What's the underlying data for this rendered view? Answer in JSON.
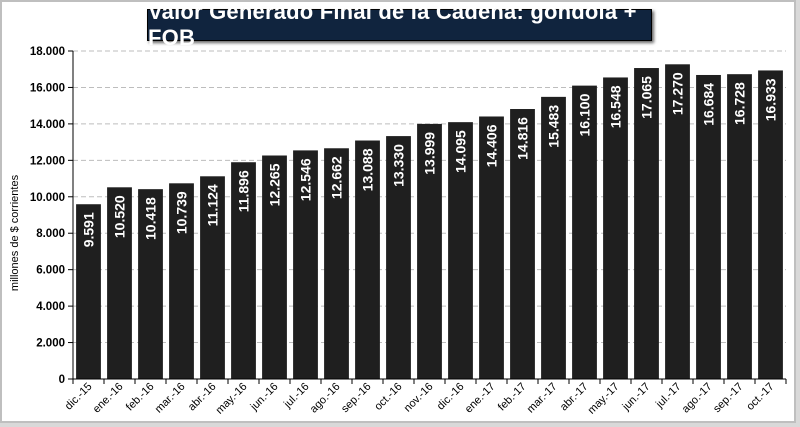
{
  "chart_data": {
    "type": "bar",
    "title": "Valor Generado Final de la Cadena: góndola + FOB",
    "ylabel": "millones de $ corrientes",
    "xlabel": "",
    "ylim": [
      0,
      18000
    ],
    "yticks": [
      "0",
      "2.000",
      "4.000",
      "6.000",
      "8.000",
      "10.000",
      "12.000",
      "14.000",
      "16.000",
      "18.000"
    ],
    "ytick_values": [
      0,
      2000,
      4000,
      6000,
      8000,
      10000,
      12000,
      14000,
      16000,
      18000
    ],
    "grid": true,
    "bar_color": "#1f1f1f",
    "title_bg": "#10243e",
    "categories": [
      "dic.-15",
      "ene.-16",
      "feb.-16",
      "mar.-16",
      "abr.-16",
      "may.-16",
      "jun.-16",
      "jul.-16",
      "ago.-16",
      "sep.-16",
      "oct.-16",
      "nov.-16",
      "dic.-16",
      "ene.-17",
      "feb.-17",
      "mar.-17",
      "abr.-17",
      "may.-17",
      "jun.-17",
      "jul.-17",
      "ago.-17",
      "sep.-17",
      "oct.-17"
    ],
    "values": [
      9591,
      10520,
      10418,
      10739,
      11124,
      11896,
      12265,
      12546,
      12662,
      13088,
      13330,
      13999,
      14095,
      14406,
      14816,
      15483,
      16100,
      16548,
      17065,
      17270,
      16684,
      16728,
      16933
    ],
    "value_labels": [
      "9.591",
      "10.520",
      "10.418",
      "10.739",
      "11.124",
      "11.896",
      "12.265",
      "12.546",
      "12.662",
      "13.088",
      "13.330",
      "13.999",
      "14.095",
      "14.406",
      "14.816",
      "15.483",
      "16.100",
      "16.548",
      "17.065",
      "17.270",
      "16.684",
      "16.728",
      "16.933"
    ]
  }
}
